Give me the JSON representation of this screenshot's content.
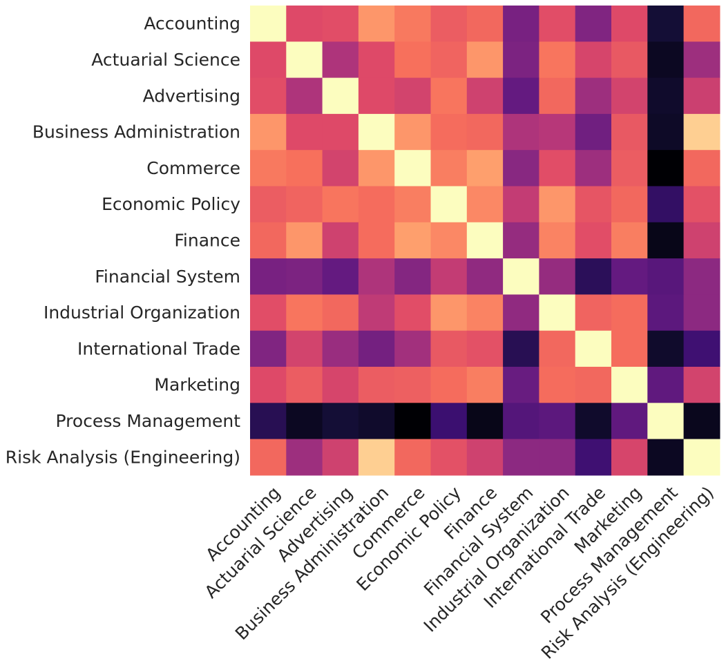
{
  "chart_data": {
    "type": "heatmap",
    "title": "",
    "xlabel": "",
    "ylabel": "",
    "colormap": "magma",
    "value_range": [
      0,
      1
    ],
    "colorbar": false,
    "grid": false,
    "categories": [
      "Accounting",
      "Actuarial Science",
      "Advertising",
      "Business Administration",
      "Commerce",
      "Economic Policy",
      "Finance",
      "Financial System",
      "Industrial Organization",
      "International Trade",
      "Marketing",
      "Process Management",
      "Risk Analysis (Engineering)"
    ],
    "values": [
      [
        1.0,
        0.6,
        0.61,
        0.78,
        0.72,
        0.65,
        0.68,
        0.35,
        0.61,
        0.37,
        0.6,
        0.1,
        0.68
      ],
      [
        0.6,
        1.0,
        0.48,
        0.6,
        0.7,
        0.67,
        0.78,
        0.36,
        0.71,
        0.58,
        0.64,
        0.06,
        0.44
      ],
      [
        0.61,
        0.48,
        1.0,
        0.6,
        0.57,
        0.71,
        0.56,
        0.3,
        0.68,
        0.44,
        0.57,
        0.08,
        0.55
      ],
      [
        0.78,
        0.6,
        0.6,
        1.0,
        0.78,
        0.69,
        0.68,
        0.48,
        0.5,
        0.33,
        0.64,
        0.07,
        0.9
      ],
      [
        0.72,
        0.7,
        0.57,
        0.78,
        1.0,
        0.73,
        0.8,
        0.39,
        0.61,
        0.44,
        0.65,
        0.0,
        0.68
      ],
      [
        0.65,
        0.67,
        0.71,
        0.69,
        0.73,
        1.0,
        0.75,
        0.53,
        0.78,
        0.63,
        0.68,
        0.18,
        0.62
      ],
      [
        0.68,
        0.78,
        0.56,
        0.69,
        0.8,
        0.75,
        1.0,
        0.42,
        0.74,
        0.61,
        0.73,
        0.04,
        0.56
      ],
      [
        0.35,
        0.36,
        0.3,
        0.48,
        0.38,
        0.53,
        0.41,
        1.0,
        0.42,
        0.16,
        0.3,
        0.27,
        0.4
      ],
      [
        0.61,
        0.71,
        0.68,
        0.52,
        0.61,
        0.78,
        0.74,
        0.41,
        1.0,
        0.67,
        0.69,
        0.28,
        0.4
      ],
      [
        0.37,
        0.57,
        0.43,
        0.34,
        0.45,
        0.64,
        0.62,
        0.15,
        0.68,
        1.0,
        0.69,
        0.08,
        0.21
      ],
      [
        0.6,
        0.65,
        0.58,
        0.65,
        0.66,
        0.69,
        0.73,
        0.31,
        0.69,
        0.68,
        1.0,
        0.29,
        0.57
      ],
      [
        0.15,
        0.06,
        0.1,
        0.08,
        0.0,
        0.2,
        0.04,
        0.26,
        0.28,
        0.08,
        0.29,
        1.0,
        0.05
      ],
      [
        0.68,
        0.44,
        0.56,
        0.9,
        0.68,
        0.62,
        0.56,
        0.4,
        0.4,
        0.21,
        0.58,
        0.06,
        1.0
      ]
    ]
  }
}
